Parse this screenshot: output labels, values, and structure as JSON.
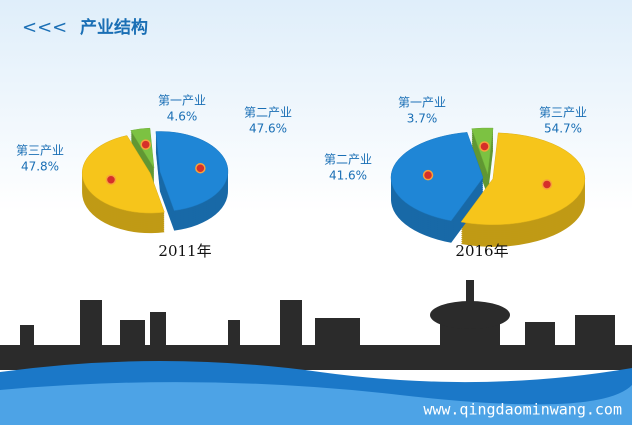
{
  "header": {
    "arrows": "<<<",
    "title": "产业结构"
  },
  "chart_data": [
    {
      "type": "pie",
      "title": "2011年",
      "categories": [
        "第一产业",
        "第二产业",
        "第三产业"
      ],
      "values": [
        4.6,
        47.6,
        47.8
      ],
      "value_labels": [
        "4.6%",
        "47.6%",
        "47.8%"
      ],
      "colors": [
        "#7cc242",
        "#1f86d6",
        "#f6c51b"
      ]
    },
    {
      "type": "pie",
      "title": "2016年",
      "categories": [
        "第一产业",
        "第三产业",
        "第二产业"
      ],
      "values": [
        3.7,
        54.7,
        41.6
      ],
      "value_labels": [
        "3.7%",
        "54.7%",
        "41.6%"
      ],
      "colors": [
        "#7cc242",
        "#f6c51b",
        "#1f86d6"
      ]
    }
  ],
  "watermark": "www.qingdaominwang.com"
}
